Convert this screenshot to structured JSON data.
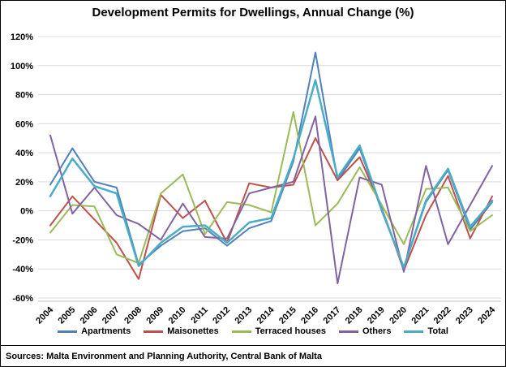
{
  "header": {
    "title": "Development Permits for Dwellings, Annual Change (%)"
  },
  "footer": {
    "sources": "Sources: Malta Environment and Planning Authority, Central Bank of Malta"
  },
  "chart_data": {
    "type": "line",
    "title": "Development Permits for Dwellings, Annual Change (%)",
    "x": [
      "2004",
      "2005",
      "2006",
      "2007",
      "2008",
      "2009",
      "2010",
      "2011",
      "2012",
      "2013",
      "2014",
      "2015",
      "2016",
      "2017",
      "2018",
      "2019",
      "2020",
      "2021",
      "2022",
      "2023",
      "2024"
    ],
    "y_ticks": [
      "120%",
      "100%",
      "80%",
      "60%",
      "40%",
      "20%",
      "0%",
      "-20%",
      "-40%",
      "-60%"
    ],
    "ylim": [
      -60,
      120
    ],
    "y_step": 20,
    "grid": true,
    "legend_position": "bottom",
    "grid_color": "#D9D9D9",
    "axis_color": "#BFBFBF",
    "series": [
      {
        "name": "Apartments",
        "color": "#4F81BD",
        "width": 2,
        "values": [
          18,
          43,
          20,
          16,
          -37,
          -24,
          -14,
          -12,
          -24,
          -12,
          -7,
          34,
          109,
          21,
          43,
          0,
          -39,
          6,
          28,
          -13,
          6
        ]
      },
      {
        "name": "Maisonettes",
        "color": "#C0504D",
        "width": 2,
        "values": [
          -10,
          10,
          -6,
          -22,
          -47,
          11,
          -5,
          7,
          -22,
          19,
          16,
          18,
          50,
          21,
          37,
          2,
          -41,
          -3,
          24,
          -19,
          10
        ]
      },
      {
        "name": "Terraced houses",
        "color": "#9BBB59",
        "width": 2,
        "values": [
          -15,
          4,
          3,
          -30,
          -36,
          12,
          25,
          -16,
          6,
          4,
          -1,
          68,
          -10,
          5,
          30,
          4,
          -23,
          15,
          16,
          -14,
          -3
        ]
      },
      {
        "name": "Others",
        "color": "#8064A2",
        "width": 2,
        "values": [
          52,
          -2,
          16,
          -3,
          -9,
          -20,
          5,
          -18,
          -19,
          12,
          16,
          20,
          65,
          -50,
          23,
          18,
          -42,
          31,
          -23,
          4,
          31
        ]
      },
      {
        "name": "Total",
        "color": "#4BACC6",
        "width": 2.5,
        "values": [
          10,
          36,
          17,
          12,
          -38,
          -22,
          -11,
          -10,
          -22,
          -8,
          -5,
          36,
          90,
          23,
          45,
          1,
          -39,
          7,
          29,
          -11,
          7
        ]
      }
    ]
  }
}
